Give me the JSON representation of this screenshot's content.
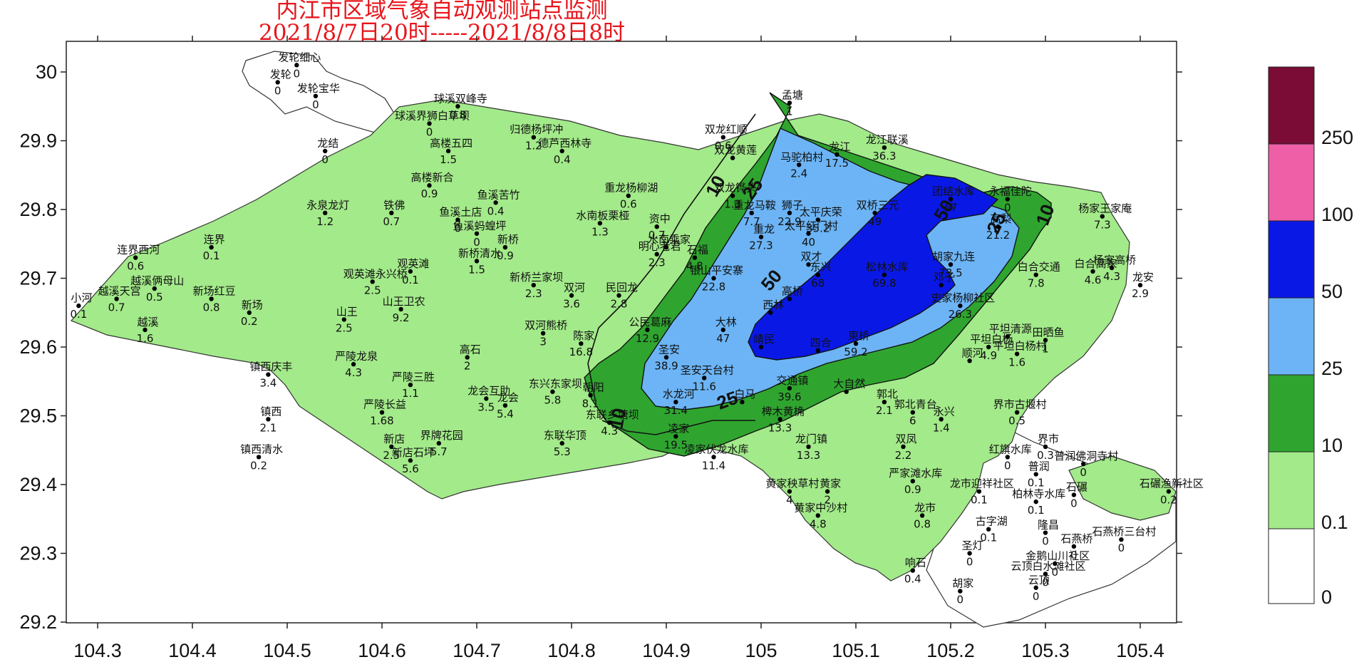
{
  "title": {
    "line1": "内江市区域气象自动观测站点监测",
    "line2": "2021/8/7日20时-----2021/8/8日8时"
  },
  "axes": {
    "x_ticks": [
      "104.3",
      "104.4",
      "104.5",
      "104.6",
      "104.7",
      "104.8",
      "104.9",
      "105",
      "105.1",
      "105.2",
      "105.3",
      "105.4"
    ],
    "y_ticks": [
      "30",
      "29.9",
      "29.8",
      "29.7",
      "29.6",
      "29.5",
      "29.4",
      "29.3",
      "29.2"
    ]
  },
  "legend": {
    "labels": [
      "250",
      "100",
      "50",
      "25",
      "10",
      "0.1",
      "0"
    ],
    "colors": [
      "#7a0c36",
      "#ee5fa7",
      "#0a18e6",
      "#6cb4f5",
      "#2fa52f",
      "#a3ea8a",
      "#ffffff"
    ]
  },
  "contour_labels": [
    "10",
    "25",
    "50",
    "50",
    "25",
    "10",
    "25",
    "10"
  ],
  "stations": [
    {
      "n": "发轮细心",
      "v": "0",
      "lon": 104.51,
      "lat": 30.01
    },
    {
      "n": "发轮",
      "v": "0",
      "lon": 104.49,
      "lat": 29.985
    },
    {
      "n": "发轮宝华",
      "v": "0",
      "lon": 104.53,
      "lat": 29.965
    },
    {
      "n": "球溪双峰寺",
      "v": "0.8",
      "lon": 104.68,
      "lat": 29.95
    },
    {
      "n": "球溪界狮白草坝",
      "v": "0",
      "lon": 104.65,
      "lat": 29.925
    },
    {
      "n": "高楼五四",
      "v": "1.5",
      "lon": 104.67,
      "lat": 29.885
    },
    {
      "n": "归德杨坪冲",
      "v": "1.2",
      "lon": 104.76,
      "lat": 29.905
    },
    {
      "n": "德芦西林寺",
      "v": "0.4",
      "lon": 104.79,
      "lat": 29.885
    },
    {
      "n": "龙结",
      "v": "0",
      "lon": 104.54,
      "lat": 29.885
    },
    {
      "n": "双龙红顺",
      "v": "0.6",
      "lon": 104.96,
      "lat": 29.905
    },
    {
      "n": "双龙黄莲",
      "v": "",
      "lon": 104.97,
      "lat": 29.875
    },
    {
      "n": "孟塘",
      "v": "1",
      "lon": 105.03,
      "lat": 29.955
    },
    {
      "n": "马驼柏村",
      "v": "2.4",
      "lon": 105.04,
      "lat": 29.865
    },
    {
      "n": "龙江",
      "v": "17.5",
      "lon": 105.08,
      "lat": 29.88
    },
    {
      "n": "龙江联溪",
      "v": "36.3",
      "lon": 105.13,
      "lat": 29.89
    },
    {
      "n": "高楼新合",
      "v": "0.9",
      "lon": 104.65,
      "lat": 29.835
    },
    {
      "n": "鱼溪苦竹",
      "v": "0.4",
      "lon": 104.72,
      "lat": 29.81
    },
    {
      "n": "重龙杨柳湖",
      "v": "0.6",
      "lon": 104.86,
      "lat": 29.82
    },
    {
      "n": "双龙铧头",
      "v": "1.3",
      "lon": 104.97,
      "lat": 29.82
    },
    {
      "n": "永泉龙灯",
      "v": "1.2",
      "lon": 104.54,
      "lat": 29.795
    },
    {
      "n": "铁佛",
      "v": "0.7",
      "lon": 104.61,
      "lat": 29.795
    },
    {
      "n": "鱼溪土店",
      "v": "0",
      "lon": 104.68,
      "lat": 29.785
    },
    {
      "n": "鱼溪蚂蝗坪",
      "v": "0",
      "lon": 104.7,
      "lat": 29.765
    },
    {
      "n": "水南板栗桠",
      "v": "1.3",
      "lon": 104.83,
      "lat": 29.78
    },
    {
      "n": "资中",
      "v": "0.7",
      "lon": 104.89,
      "lat": 29.775
    },
    {
      "n": "重龙马鞍",
      "v": "7.7",
      "lon": 104.99,
      "lat": 29.795
    },
    {
      "n": "狮子",
      "v": "22.9",
      "lon": 105.03,
      "lat": 29.795
    },
    {
      "n": "水南乘家",
      "v": "",
      "lon": 104.9,
      "lat": 29.745
    },
    {
      "n": "明心老君",
      "v": "2.3",
      "lon": 104.89,
      "lat": 29.735
    },
    {
      "n": "石福",
      "v": "4.8",
      "lon": 104.93,
      "lat": 29.73
    },
    {
      "n": "连界西河",
      "v": "0.6",
      "lon": 104.34,
      "lat": 29.73
    },
    {
      "n": "连界",
      "v": "0.1",
      "lon": 104.42,
      "lat": 29.745
    },
    {
      "n": "新桥",
      "v": "0.9",
      "lon": 104.73,
      "lat": 29.745
    },
    {
      "n": "新桥清水",
      "v": "1.5",
      "lon": 104.7,
      "lat": 29.725
    },
    {
      "n": "观英滩",
      "v": "0.1",
      "lon": 104.63,
      "lat": 29.71
    },
    {
      "n": "观英滩永兴桥",
      "v": "2.5",
      "lon": 104.59,
      "lat": 29.695
    },
    {
      "n": "越溪俩母山",
      "v": "0.5",
      "lon": 104.36,
      "lat": 29.685
    },
    {
      "n": "新桥兰家坝",
      "v": "2.3",
      "lon": 104.76,
      "lat": 29.69
    },
    {
      "n": "双河",
      "v": "3.6",
      "lon": 104.8,
      "lat": 29.675
    },
    {
      "n": "民回龙",
      "v": "2.8",
      "lon": 104.85,
      "lat": 29.675
    },
    {
      "n": "银山平安寨",
      "v": "22.8",
      "lon": 104.95,
      "lat": 29.7
    },
    {
      "n": "小河",
      "v": "0.1",
      "lon": 104.28,
      "lat": 29.66
    },
    {
      "n": "越溪天宫",
      "v": "0.7",
      "lon": 104.32,
      "lat": 29.67
    },
    {
      "n": "新场红豆",
      "v": "0.8",
      "lon": 104.42,
      "lat": 29.67
    },
    {
      "n": "新场",
      "v": "0.2",
      "lon": 104.46,
      "lat": 29.65
    },
    {
      "n": "山王",
      "v": "2.5",
      "lon": 104.56,
      "lat": 29.64
    },
    {
      "n": "山王卫农",
      "v": "9.2",
      "lon": 104.62,
      "lat": 29.655
    },
    {
      "n": "越溪",
      "v": "1.6",
      "lon": 104.35,
      "lat": 29.625
    },
    {
      "n": "双河熊桥",
      "v": "3",
      "lon": 104.77,
      "lat": 29.62
    },
    {
      "n": "陈家",
      "v": "16.8",
      "lon": 104.81,
      "lat": 29.605
    },
    {
      "n": "公民葛麻",
      "v": "12.9",
      "lon": 104.88,
      "lat": 29.625
    },
    {
      "n": "大林",
      "v": "47",
      "lon": 104.96,
      "lat": 29.625
    },
    {
      "n": "镇西庆丰",
      "v": "3.4",
      "lon": 104.48,
      "lat": 29.56
    },
    {
      "n": "严陵龙泉",
      "v": "4.3",
      "lon": 104.57,
      "lat": 29.575
    },
    {
      "n": "高石",
      "v": "2",
      "lon": 104.69,
      "lat": 29.585
    },
    {
      "n": "圣安",
      "v": "38.9",
      "lon": 104.9,
      "lat": 29.585
    },
    {
      "n": "严陵三胜",
      "v": "1.1",
      "lon": 104.63,
      "lat": 29.545
    },
    {
      "n": "龙会互助",
      "v": "3.5",
      "lon": 104.71,
      "lat": 29.525
    },
    {
      "n": "龙会",
      "v": "5.4",
      "lon": 104.73,
      "lat": 29.515
    },
    {
      "n": "东兴东家坝",
      "v": "5.8",
      "lon": 104.78,
      "lat": 29.535
    },
    {
      "n": "朝阳",
      "v": "8.1",
      "lon": 104.82,
      "lat": 29.53
    },
    {
      "n": "圣安天台村",
      "v": "11.6",
      "lon": 104.94,
      "lat": 29.555
    },
    {
      "n": "水龙河",
      "v": "31.4",
      "lon": 104.91,
      "lat": 29.52
    },
    {
      "n": "白马",
      "v": "",
      "lon": 104.98,
      "lat": 29.52
    },
    {
      "n": "交通镇",
      "v": "39.6",
      "lon": 105.03,
      "lat": 29.54
    },
    {
      "n": "大自然",
      "v": "",
      "lon": 105.09,
      "lat": 29.535
    },
    {
      "n": "郭北",
      "v": "2.1",
      "lon": 105.13,
      "lat": 29.52
    },
    {
      "n": "郭北青台",
      "v": "6",
      "lon": 105.16,
      "lat": 29.505
    },
    {
      "n": "严陵长益",
      "v": "1.68",
      "lon": 104.6,
      "lat": 29.505
    },
    {
      "n": "镇西",
      "v": "2.1",
      "lon": 104.48,
      "lat": 29.495
    },
    {
      "n": "东联乡塘坝",
      "v": "4.3",
      "lon": 104.84,
      "lat": 29.49
    },
    {
      "n": "界牌花园",
      "v": "5.7",
      "lon": 104.66,
      "lat": 29.46
    },
    {
      "n": "东联华顶",
      "v": "5.3",
      "lon": 104.79,
      "lat": 29.46
    },
    {
      "n": "新店",
      "v": "2.5",
      "lon": 104.61,
      "lat": 29.455
    },
    {
      "n": "新店石坪",
      "v": "5.6",
      "lon": 104.63,
      "lat": 29.435
    },
    {
      "n": "镇西清水",
      "v": "0.2",
      "lon": 104.47,
      "lat": 29.44
    },
    {
      "n": "凌家",
      "v": "19.5",
      "lon": 104.91,
      "lat": 29.47
    },
    {
      "n": "凌家伏龙水库",
      "v": "11.4",
      "lon": 104.95,
      "lat": 29.44
    },
    {
      "n": "椑木黄桷",
      "v": "13.3",
      "lon": 105.02,
      "lat": 29.495
    },
    {
      "n": "龙门镇",
      "v": "13.3",
      "lon": 105.05,
      "lat": 29.455
    },
    {
      "n": "永兴",
      "v": "1.4",
      "lon": 105.19,
      "lat": 29.495
    },
    {
      "n": "界市古堰村",
      "v": "0.5",
      "lon": 105.27,
      "lat": 29.505
    },
    {
      "n": "双凤",
      "v": "2.2",
      "lon": 105.15,
      "lat": 29.455
    },
    {
      "n": "界市",
      "v": "0.3",
      "lon": 105.3,
      "lat": 29.455
    },
    {
      "n": "红旗水库",
      "v": "0",
      "lon": 105.26,
      "lat": 29.44
    },
    {
      "n": "普润",
      "v": "0.1",
      "lon": 105.29,
      "lat": 29.415
    },
    {
      "n": "普润佛洞寺村",
      "v": "0",
      "lon": 105.34,
      "lat": 29.43
    },
    {
      "n": "严家滩水库",
      "v": "0.9",
      "lon": 105.16,
      "lat": 29.405
    },
    {
      "n": "黄家秧草村",
      "v": "4",
      "lon": 105.03,
      "lat": 29.39
    },
    {
      "n": "黄家",
      "v": "2",
      "lon": 105.07,
      "lat": 29.39
    },
    {
      "n": "龙市迎祥社区",
      "v": "0.1",
      "lon": 105.23,
      "lat": 29.39
    },
    {
      "n": "柏林寺水库",
      "v": "0.1",
      "lon": 105.29,
      "lat": 29.375
    },
    {
      "n": "石碾",
      "v": "0",
      "lon": 105.33,
      "lat": 29.385
    },
    {
      "n": "石碾渔新社区",
      "v": "0.2",
      "lon": 105.43,
      "lat": 29.39
    },
    {
      "n": "黄家中沙村",
      "v": "4.8",
      "lon": 105.06,
      "lat": 29.355
    },
    {
      "n": "龙市",
      "v": "0.8",
      "lon": 105.17,
      "lat": 29.355
    },
    {
      "n": "古字湖",
      "v": "0.1",
      "lon": 105.24,
      "lat": 29.335
    },
    {
      "n": "隆昌",
      "v": "0",
      "lon": 105.3,
      "lat": 29.33
    },
    {
      "n": "石燕桥",
      "v": "0",
      "lon": 105.33,
      "lat": 29.31
    },
    {
      "n": "石燕桥三台村",
      "v": "0",
      "lon": 105.38,
      "lat": 29.32
    },
    {
      "n": "圣灯",
      "v": "0",
      "lon": 105.22,
      "lat": 29.3
    },
    {
      "n": "金鹅山川社区",
      "v": "0",
      "lon": 105.31,
      "lat": 29.285
    },
    {
      "n": "响石",
      "v": "0.4",
      "lon": 105.16,
      "lat": 29.275
    },
    {
      "n": "云顶白水滩社区",
      "v": "0",
      "lon": 105.3,
      "lat": 29.27
    },
    {
      "n": "胡家",
      "v": "0",
      "lon": 105.21,
      "lat": 29.245
    },
    {
      "n": "云顶",
      "v": "0",
      "lon": 105.29,
      "lat": 29.25
    },
    {
      "n": "永福佳陀",
      "v": "0",
      "lon": 105.26,
      "lat": 29.815
    },
    {
      "n": "团结水库",
      "v": "67",
      "lon": 105.2,
      "lat": 29.815
    },
    {
      "n": "杨家王家庵",
      "v": "7.3",
      "lon": 105.36,
      "lat": 29.79
    },
    {
      "n": "高梨",
      "v": "21.2",
      "lon": 105.25,
      "lat": 29.775
    },
    {
      "n": "双桥三元",
      "v": "49",
      "lon": 105.12,
      "lat": 29.795
    },
    {
      "n": "太平庆荣",
      "v": "35.2",
      "lon": 105.06,
      "lat": 29.785
    },
    {
      "n": "太平红门村",
      "v": "40",
      "lon": 105.05,
      "lat": 29.765
    },
    {
      "n": "重龙",
      "v": "27.3",
      "lon": 105.0,
      "lat": 29.76
    },
    {
      "n": "胡家九连",
      "v": "73.5",
      "lon": 105.2,
      "lat": 29.72
    },
    {
      "n": "松林水库",
      "v": "69.8",
      "lon": 105.13,
      "lat": 29.705
    },
    {
      "n": "白合交通",
      "v": "7.8",
      "lon": 105.29,
      "lat": 29.705
    },
    {
      "n": "白合高家",
      "v": "4.6",
      "lon": 105.35,
      "lat": 29.71
    },
    {
      "n": "杨家高桥",
      "v": "4.3",
      "lon": 105.37,
      "lat": 29.715
    },
    {
      "n": "龙安",
      "v": "2.9",
      "lon": 105.4,
      "lat": 29.69
    },
    {
      "n": "史家杨柳社区",
      "v": "26.3",
      "lon": 105.21,
      "lat": 29.66
    },
    {
      "n": "邓子",
      "v": "",
      "lon": 105.19,
      "lat": 29.69
    },
    {
      "n": "东兴",
      "v": "68",
      "lon": 105.06,
      "lat": 29.705
    },
    {
      "n": "双才",
      "v": "",
      "lon": 105.05,
      "lat": 29.72
    },
    {
      "n": "平坦清源",
      "v": "",
      "lon": 105.26,
      "lat": 29.615
    },
    {
      "n": "平坦白杨",
      "v": "4.9",
      "lon": 105.24,
      "lat": 29.6
    },
    {
      "n": "田晒鱼",
      "v": "1",
      "lon": 105.3,
      "lat": 29.61
    },
    {
      "n": "平坦白杨村",
      "v": "1.6",
      "lon": 105.27,
      "lat": 29.59
    },
    {
      "n": "顺河",
      "v": "",
      "lon": 105.22,
      "lat": 29.58
    },
    {
      "n": "高桥",
      "v": "",
      "lon": 105.03,
      "lat": 29.67
    },
    {
      "n": "西林",
      "v": "",
      "lon": 105.01,
      "lat": 29.65
    },
    {
      "n": "靖民",
      "v": "",
      "lon": 105.0,
      "lat": 29.6
    },
    {
      "n": "四合",
      "v": "",
      "lon": 105.06,
      "lat": 29.595
    },
    {
      "n": "東桥",
      "v": "59.2",
      "lon": 105.1,
      "lat": 29.605
    }
  ]
}
